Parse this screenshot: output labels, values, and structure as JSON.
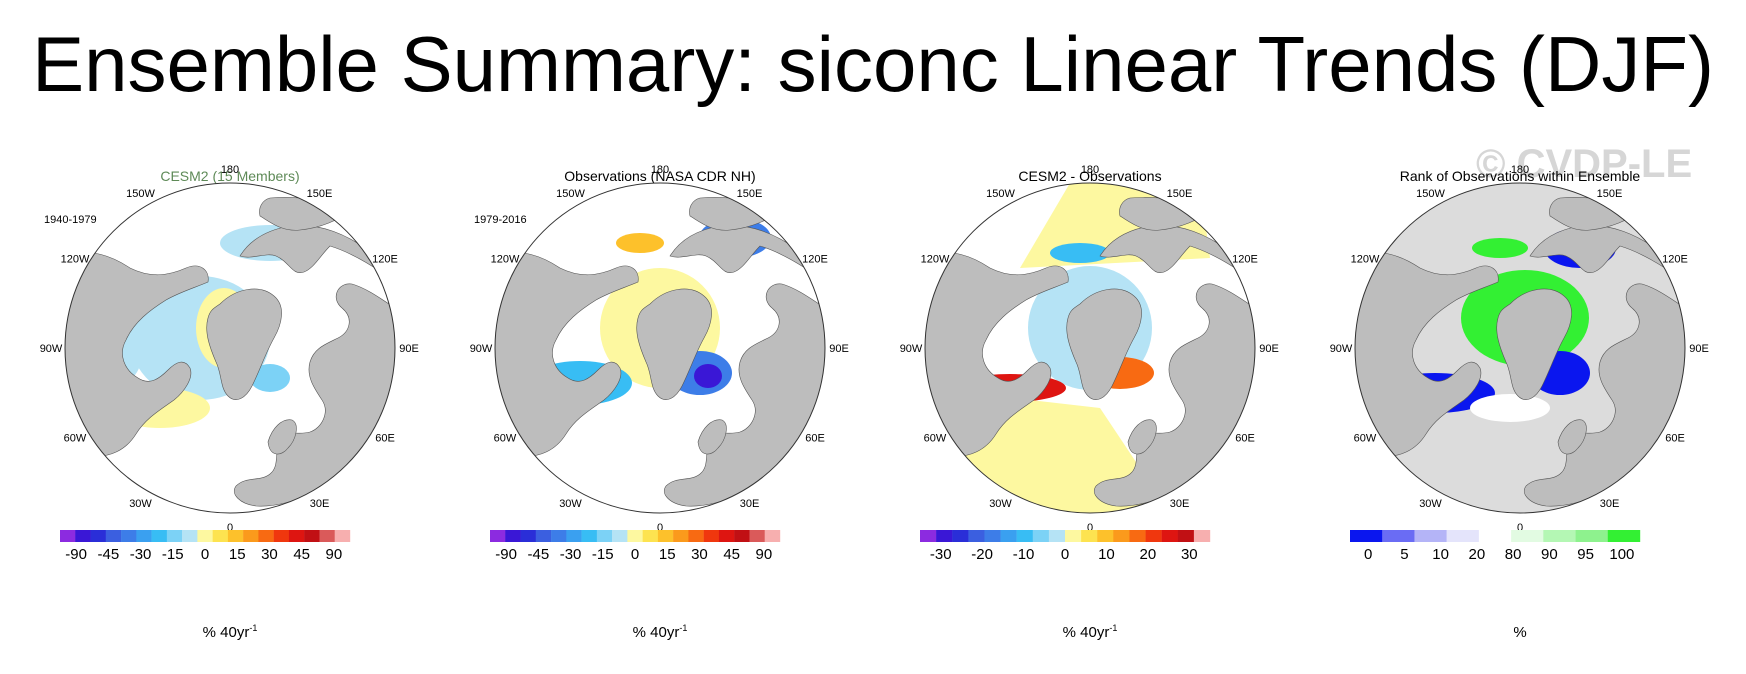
{
  "title": "Ensemble Summary: siconc Linear Trends (DJF)",
  "watermark": "© CVDP-LE",
  "lon_labels": [
    "180",
    "150E",
    "120E",
    "90E",
    "60E",
    "30E",
    "0",
    "30W",
    "60W",
    "90W",
    "120W",
    "150W"
  ],
  "colors": {
    "land": "#bdbdbd",
    "ocean": "#ffffff",
    "model_title": "#5e8a57",
    "trend_scale": [
      "#8c2be0",
      "#3a17d6",
      "#2a2ed8",
      "#3b5fe0",
      "#3d7de8",
      "#3aa0f0",
      "#38bdf4",
      "#7cd2f6",
      "#b5e3f5",
      "#fdf8a0",
      "#fde350",
      "#fdc12b",
      "#fb9a1c",
      "#f86a12",
      "#f0370e",
      "#de1511",
      "#c11014",
      "#da5a5a",
      "#f7afaf"
    ],
    "diff_scale": [
      "#8c2be0",
      "#3a17d6",
      "#2a2ed8",
      "#3b5fe0",
      "#3d7de8",
      "#3aa0f0",
      "#38bdf4",
      "#7cd2f6",
      "#b5e3f5",
      "#fdf8a0",
      "#fde350",
      "#fdc12b",
      "#fb9a1c",
      "#f86a12",
      "#f0370e",
      "#de1511",
      "#c11014",
      "#f7afaf"
    ],
    "rank_scale": [
      "#0a16ef",
      "#6a6cf4",
      "#b4b4f7",
      "#e4e4fb",
      "#ffffff",
      "#e2fbe2",
      "#b4f7b4",
      "#8ef28e",
      "#33f033"
    ]
  },
  "panels": [
    {
      "title": "CESM2 (15 Members)",
      "period": "1940-1979",
      "colorbar": {
        "labels": [
          "-90",
          "-45",
          "-30",
          "-15",
          "0",
          "15",
          "30",
          "45",
          "90"
        ],
        "units": "% 40yr",
        "units_sup": "-1"
      }
    },
    {
      "title": "Observations (NASA CDR NH)",
      "period": "1979-2016",
      "colorbar": {
        "labels": [
          "-90",
          "-45",
          "-30",
          "-15",
          "0",
          "15",
          "30",
          "45",
          "90"
        ],
        "units": "% 40yr",
        "units_sup": "-1"
      }
    },
    {
      "title": "CESM2 - Observations",
      "period": "",
      "colorbar": {
        "labels": [
          "-30",
          "-20",
          "-10",
          "0",
          "10",
          "20",
          "30"
        ],
        "units": "% 40yr",
        "units_sup": "-1"
      }
    },
    {
      "title": "Rank of Observations within Ensemble",
      "period": "",
      "colorbar": {
        "labels": [
          "0",
          "5",
          "10",
          "20",
          "80",
          "90",
          "95",
          "100"
        ],
        "units": "%",
        "units_sup": ""
      }
    }
  ]
}
